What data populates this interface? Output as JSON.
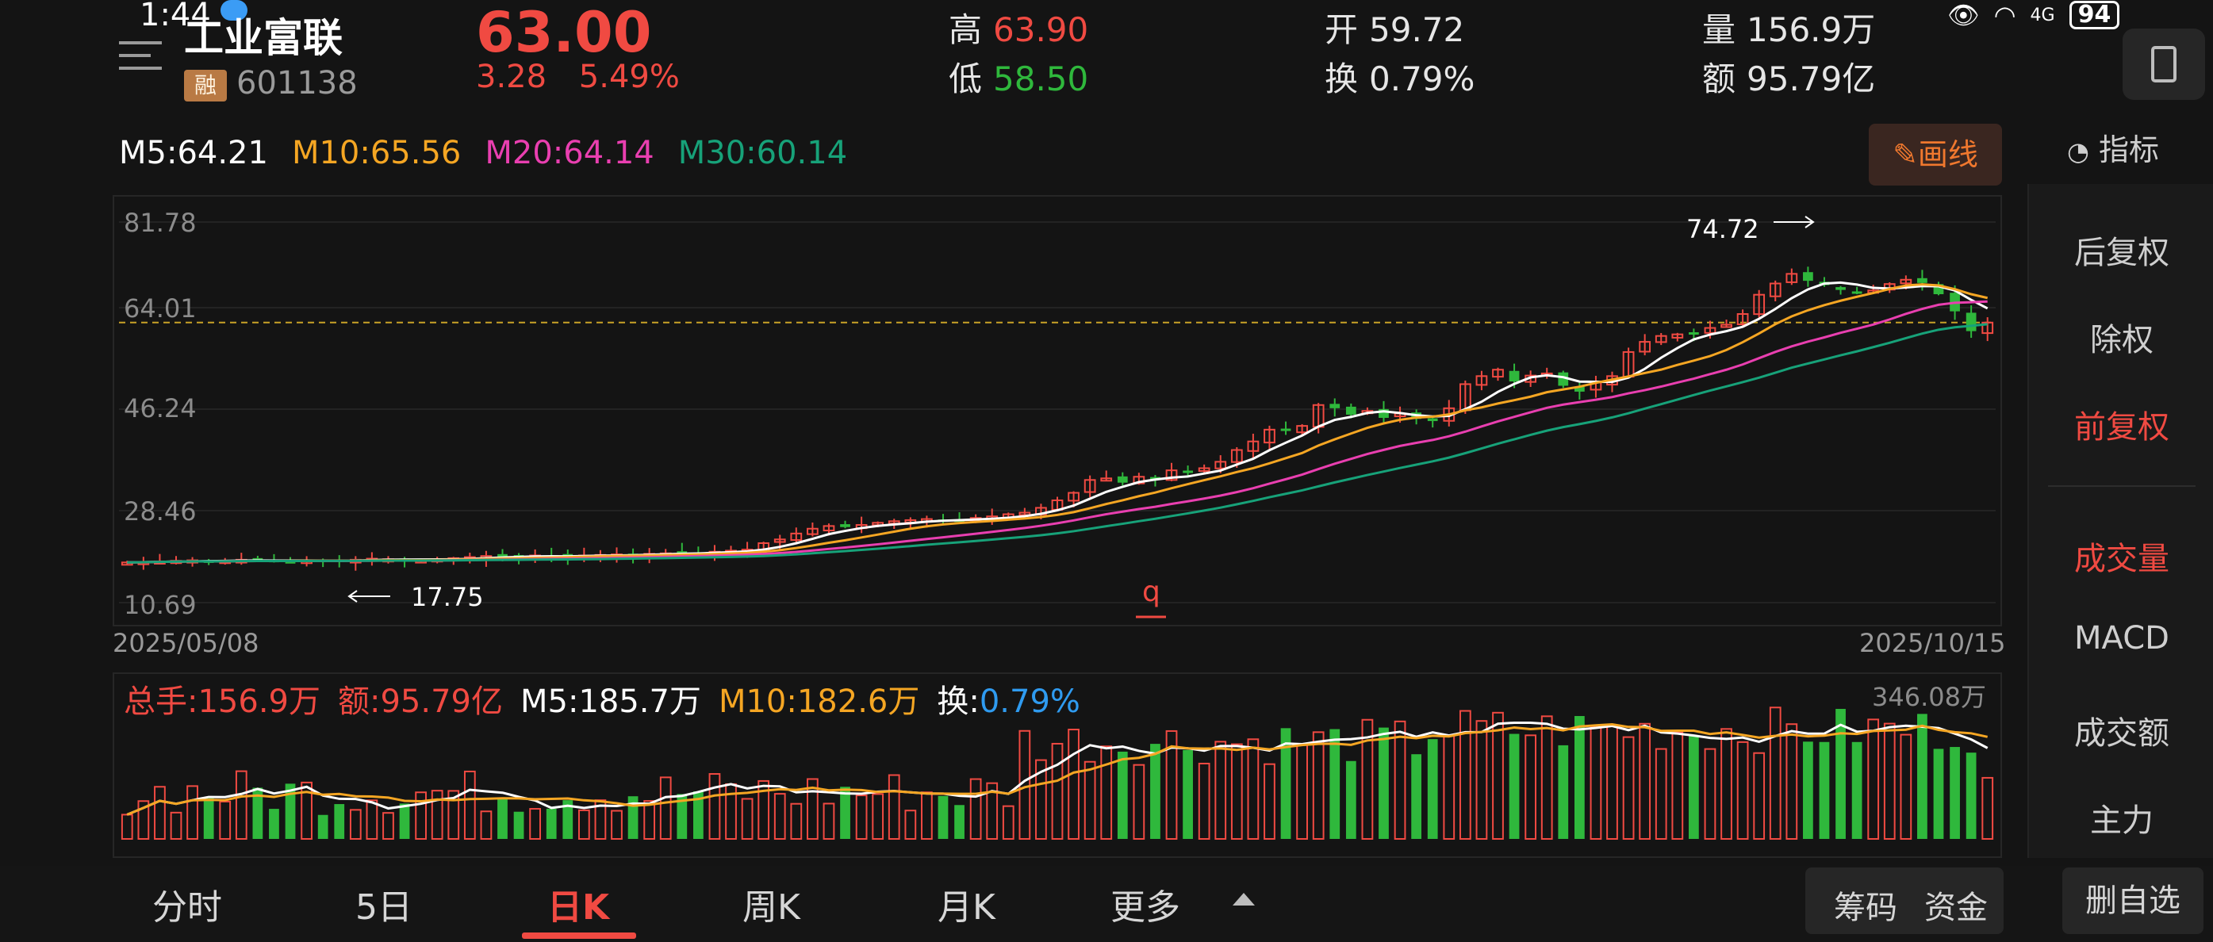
{
  "status_bar": {
    "time": "1:44",
    "network": "4G",
    "battery": "94"
  },
  "header": {
    "name": "工业富联",
    "badge": "融",
    "code": "601138",
    "price": "63.00",
    "change": "3.28",
    "change_pct": "5.49%",
    "high_label": "高",
    "high": "63.90",
    "low_label": "低",
    "low": "58.50",
    "open_label": "开",
    "open": "59.72",
    "turnover_label": "换",
    "turnover": "0.79%",
    "volume_label": "量",
    "volume": "156.9万",
    "amount_label": "额",
    "amount": "95.79亿"
  },
  "ma_bar": {
    "m5": "M5:64.21",
    "m10": "M10:65.56",
    "m20": "M20:64.14",
    "m30": "M30:60.14",
    "colors": {
      "m5": "#ffffff",
      "m10": "#f5a623",
      "m20": "#e93fb0",
      "m30": "#17a279"
    }
  },
  "draw_button": "画线",
  "indicator_button": "指标",
  "side_panel": [
    "后复权",
    "除权",
    "前复权",
    "成交量",
    "MACD",
    "成交额",
    "主力"
  ],
  "side_panel_active": [
    "前复权",
    "成交量"
  ],
  "chart": {
    "y_ticks": [
      "81.78",
      "64.01",
      "46.24",
      "28.46",
      "10.69"
    ],
    "date_start": "2025/05/08",
    "date_end": "2025/10/15",
    "max_label": "74.72",
    "min_label": "17.75",
    "marker": "q"
  },
  "volume_bar": {
    "total": "总手:156.9万",
    "amount": "额:95.79亿",
    "m5": "M5:185.7万",
    "m10": "M10:182.6万",
    "turn_label": "换:",
    "turn_value": "0.79%",
    "max_label": "346.08万"
  },
  "tabs": [
    "分时",
    "5日",
    "日K",
    "周K",
    "月K",
    "更多"
  ],
  "active_tab": "日K",
  "bottom_buttons": [
    "筹码",
    "资金"
  ],
  "watch_button": "删自选",
  "colors": {
    "up": "#f04a42",
    "down": "#2fb83c",
    "background": "#141414"
  },
  "chart_data": {
    "type": "candlestick",
    "x_start": "2025/05/08",
    "x_end": "2025/10/15",
    "ylim": [
      10.69,
      81.78
    ],
    "current_price": 63.0,
    "highest": 74.72,
    "lowest": 17.75,
    "close_approx": [
      18.2,
      18.3,
      18.4,
      18.5,
      18.6,
      18.4,
      18.5,
      18.7,
      18.6,
      18.5,
      18.4,
      18.5,
      18.6,
      18.5,
      18.7,
      18.9,
      18.8,
      18.7,
      18.6,
      18.8,
      19.0,
      19.2,
      19.4,
      19.2,
      19.3,
      19.5,
      19.4,
      19.3,
      19.5,
      19.6,
      19.7,
      19.6,
      19.8,
      19.9,
      20.1,
      20.0,
      20.2,
      20.4,
      20.6,
      21.8,
      22.5,
      23.6,
      24.5,
      25.0,
      24.8,
      25.2,
      25.6,
      25.9,
      26.1,
      26.3,
      26.0,
      26.2,
      26.5,
      26.8,
      27.2,
      27.5,
      28.4,
      29.8,
      31.2,
      33.6,
      33.9,
      33.1,
      34.2,
      33.6,
      35.4,
      35.0,
      35.8,
      37.0,
      39.2,
      40.8,
      43.0,
      42.8,
      43.7,
      47.6,
      47.0,
      45.8,
      46.5,
      45.2,
      46.0,
      45.0,
      44.6,
      47.0,
      51.5,
      53.0,
      54.2,
      52.0,
      53.1,
      53.5,
      51.2,
      50.1,
      51.8,
      53.0,
      57.5,
      59.4,
      60.5,
      60.8,
      61.1,
      62.0,
      62.6,
      64.6,
      68.2,
      70.3,
      72.1,
      70.8,
      70.0,
      69.1,
      68.5,
      69.0,
      70.2,
      71.0,
      70.4,
      68.3,
      65.1,
      61.4,
      63.0
    ],
    "volume_unit": "万",
    "volume_max": 346.08,
    "volume_current": 156.9,
    "ma": {
      "M5": 64.21,
      "M10": 65.56,
      "M20": 64.14,
      "M30": 60.14
    },
    "vol_ma": {
      "M5": 185.7,
      "M10": 182.6
    }
  }
}
